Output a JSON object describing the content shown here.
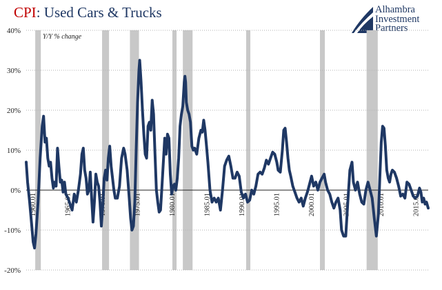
{
  "title": {
    "prefix": "CPI",
    "rest": ": Used Cars & Trucks"
  },
  "logo": {
    "lines": [
      "Alhambra",
      "Investment",
      "Partners"
    ]
  },
  "colors": {
    "line": "#1f3864",
    "recession": "#c8c8c8",
    "title_accent": "#c00000",
    "title": "#1f3864"
  },
  "chart_data": {
    "type": "line",
    "annotation": "Y/Y % change",
    "xlim": [
      1959.0,
      2016.75
    ],
    "ylim": [
      -20,
      40
    ],
    "y_ticks": [
      -20,
      -10,
      0,
      10,
      20,
      30,
      40
    ],
    "y_tick_labels": [
      "-20%",
      "-10%",
      "0%",
      "10%",
      "20%",
      "30%",
      "40%"
    ],
    "x_ticks": [
      1960,
      1965,
      1970,
      1975,
      1980,
      1985,
      1990,
      1995,
      2000,
      2005,
      2010,
      2015
    ],
    "x_tick_labels": [
      "1960.01",
      "1965.01",
      "1970.01",
      "1975.01",
      "1980.01",
      "1985.01",
      "1990.01",
      "1995.01",
      "2000.01",
      "2005.01",
      "2010.01",
      "2015.01"
    ],
    "grid": true,
    "recessions": [
      [
        1960.3,
        1961.1
      ],
      [
        1969.9,
        1970.9
      ],
      [
        1973.9,
        1975.2
      ],
      [
        1980.0,
        1980.6
      ],
      [
        1981.5,
        1982.9
      ],
      [
        1990.6,
        1991.2
      ],
      [
        2001.2,
        2001.9
      ],
      [
        2007.9,
        2009.5
      ]
    ],
    "series": [
      {
        "points": [
          [
            1959.0,
            7
          ],
          [
            1959.2,
            2
          ],
          [
            1959.5,
            -3
          ],
          [
            1959.8,
            -9
          ],
          [
            1960.0,
            -13
          ],
          [
            1960.2,
            -14.5
          ],
          [
            1960.4,
            -11
          ],
          [
            1960.7,
            -3
          ],
          [
            1961.0,
            8
          ],
          [
            1961.3,
            16
          ],
          [
            1961.5,
            18.5
          ],
          [
            1961.7,
            12
          ],
          [
            1961.9,
            13
          ],
          [
            1962.1,
            8
          ],
          [
            1962.3,
            6
          ],
          [
            1962.5,
            7
          ],
          [
            1962.7,
            3
          ],
          [
            1962.9,
            0.5
          ],
          [
            1963.1,
            2
          ],
          [
            1963.3,
            1
          ],
          [
            1963.5,
            10.5
          ],
          [
            1963.7,
            6
          ],
          [
            1963.9,
            2
          ],
          [
            1964.1,
            2.5
          ],
          [
            1964.3,
            -0.5
          ],
          [
            1964.5,
            2
          ],
          [
            1964.7,
            -1
          ],
          [
            1965.0,
            -2
          ],
          [
            1965.3,
            -3.5
          ],
          [
            1965.6,
            -5
          ],
          [
            1965.9,
            -1
          ],
          [
            1966.2,
            -3
          ],
          [
            1966.5,
            0
          ],
          [
            1966.8,
            4
          ],
          [
            1967.0,
            9
          ],
          [
            1967.2,
            10.5
          ],
          [
            1967.4,
            5
          ],
          [
            1967.6,
            3
          ],
          [
            1967.8,
            -1
          ],
          [
            1968.0,
            0
          ],
          [
            1968.2,
            4.5
          ],
          [
            1968.4,
            -2
          ],
          [
            1968.6,
            -8
          ],
          [
            1968.8,
            -3
          ],
          [
            1969.0,
            4
          ],
          [
            1969.2,
            2
          ],
          [
            1969.4,
            1
          ],
          [
            1969.6,
            -3
          ],
          [
            1969.8,
            -9
          ],
          [
            1970.0,
            -4
          ],
          [
            1970.2,
            3
          ],
          [
            1970.4,
            5
          ],
          [
            1970.6,
            2.5
          ],
          [
            1970.8,
            8
          ],
          [
            1971.0,
            11
          ],
          [
            1971.2,
            6
          ],
          [
            1971.4,
            3
          ],
          [
            1971.6,
            0
          ],
          [
            1971.8,
            -2
          ],
          [
            1972.1,
            -2
          ],
          [
            1972.4,
            1
          ],
          [
            1972.7,
            8
          ],
          [
            1973.0,
            10.5
          ],
          [
            1973.2,
            9
          ],
          [
            1973.5,
            5
          ],
          [
            1973.8,
            -2
          ],
          [
            1974.0,
            -7
          ],
          [
            1974.2,
            -10
          ],
          [
            1974.4,
            -9
          ],
          [
            1974.6,
            -3
          ],
          [
            1974.8,
            10
          ],
          [
            1975.0,
            22
          ],
          [
            1975.2,
            30
          ],
          [
            1975.3,
            32.5
          ],
          [
            1975.5,
            27
          ],
          [
            1975.7,
            20
          ],
          [
            1975.9,
            14
          ],
          [
            1976.1,
            9
          ],
          [
            1976.3,
            8
          ],
          [
            1976.5,
            16
          ],
          [
            1976.7,
            17
          ],
          [
            1976.9,
            15
          ],
          [
            1977.1,
            22.5
          ],
          [
            1977.3,
            19
          ],
          [
            1977.5,
            9
          ],
          [
            1977.7,
            0
          ],
          [
            1977.9,
            -3
          ],
          [
            1978.1,
            -5.5
          ],
          [
            1978.3,
            -5
          ],
          [
            1978.5,
            1
          ],
          [
            1978.7,
            7
          ],
          [
            1978.9,
            13
          ],
          [
            1979.1,
            9
          ],
          [
            1979.3,
            14
          ],
          [
            1979.5,
            13
          ],
          [
            1979.7,
            4
          ],
          [
            1979.9,
            -1
          ],
          [
            1980.1,
            1
          ],
          [
            1980.3,
            1.5
          ],
          [
            1980.5,
            0
          ],
          [
            1980.7,
            3
          ],
          [
            1980.9,
            8
          ],
          [
            1981.1,
            16
          ],
          [
            1981.3,
            19
          ],
          [
            1981.5,
            21
          ],
          [
            1981.7,
            27
          ],
          [
            1981.8,
            28.5
          ],
          [
            1981.9,
            27
          ],
          [
            1982.0,
            22
          ],
          [
            1982.2,
            20
          ],
          [
            1982.4,
            19
          ],
          [
            1982.6,
            17
          ],
          [
            1982.8,
            11
          ],
          [
            1983.0,
            10
          ],
          [
            1983.2,
            10.5
          ],
          [
            1983.5,
            9
          ],
          [
            1983.8,
            13
          ],
          [
            1984.1,
            15
          ],
          [
            1984.3,
            14.5
          ],
          [
            1984.5,
            17.5
          ],
          [
            1984.7,
            15
          ],
          [
            1984.9,
            11
          ],
          [
            1985.1,
            7
          ],
          [
            1985.4,
            0
          ],
          [
            1985.7,
            -3
          ],
          [
            1986.0,
            -2
          ],
          [
            1986.3,
            -3
          ],
          [
            1986.6,
            -2
          ],
          [
            1986.9,
            -5
          ],
          [
            1987.2,
            0
          ],
          [
            1987.5,
            6
          ],
          [
            1987.8,
            7.5
          ],
          [
            1988.1,
            8.5
          ],
          [
            1988.4,
            6
          ],
          [
            1988.7,
            3
          ],
          [
            1989.0,
            3
          ],
          [
            1989.3,
            4.5
          ],
          [
            1989.6,
            3.5
          ],
          [
            1989.9,
            -0.5
          ],
          [
            1990.2,
            -2
          ],
          [
            1990.5,
            -1
          ],
          [
            1990.8,
            -3
          ],
          [
            1991.1,
            -2.5
          ],
          [
            1991.4,
            0
          ],
          [
            1991.7,
            -1
          ],
          [
            1992.0,
            1
          ],
          [
            1992.3,
            4
          ],
          [
            1992.6,
            4.5
          ],
          [
            1992.9,
            4
          ],
          [
            1993.2,
            5.5
          ],
          [
            1993.5,
            7.5
          ],
          [
            1993.8,
            6.5
          ],
          [
            1994.1,
            8
          ],
          [
            1994.4,
            9.5
          ],
          [
            1994.7,
            9
          ],
          [
            1995.0,
            7
          ],
          [
            1995.2,
            5
          ],
          [
            1995.5,
            4.5
          ],
          [
            1995.8,
            10
          ],
          [
            1996.0,
            15
          ],
          [
            1996.2,
            15.5
          ],
          [
            1996.4,
            12
          ],
          [
            1996.6,
            8
          ],
          [
            1996.8,
            5
          ],
          [
            1997.0,
            3.5
          ],
          [
            1997.3,
            1
          ],
          [
            1997.6,
            -0.5
          ],
          [
            1997.9,
            -2
          ],
          [
            1998.2,
            -3
          ],
          [
            1998.5,
            -2
          ],
          [
            1998.8,
            -4
          ],
          [
            1999.1,
            -2
          ],
          [
            1999.4,
            -0.5
          ],
          [
            1999.7,
            1.5
          ],
          [
            2000.0,
            3.5
          ],
          [
            2000.3,
            1
          ],
          [
            2000.6,
            2
          ],
          [
            2000.9,
            0
          ],
          [
            2001.2,
            2
          ],
          [
            2001.5,
            3
          ],
          [
            2001.8,
            4
          ],
          [
            2002.0,
            2
          ],
          [
            2002.3,
            0
          ],
          [
            2002.6,
            -1
          ],
          [
            2002.9,
            -3
          ],
          [
            2003.2,
            -4.5
          ],
          [
            2003.5,
            -3
          ],
          [
            2003.8,
            -2
          ],
          [
            2004.1,
            -5
          ],
          [
            2004.3,
            -10
          ],
          [
            2004.6,
            -11.5
          ],
          [
            2004.9,
            -11.5
          ],
          [
            2005.2,
            -3
          ],
          [
            2005.5,
            5
          ],
          [
            2005.8,
            7
          ],
          [
            2006.0,
            2
          ],
          [
            2006.3,
            0
          ],
          [
            2006.6,
            2
          ],
          [
            2006.9,
            -1
          ],
          [
            2007.2,
            -3
          ],
          [
            2007.5,
            -3.5
          ],
          [
            2007.8,
            0
          ],
          [
            2008.1,
            2
          ],
          [
            2008.4,
            0
          ],
          [
            2008.7,
            -2
          ],
          [
            2009.0,
            -7
          ],
          [
            2009.3,
            -11.5
          ],
          [
            2009.6,
            -6
          ],
          [
            2009.8,
            3
          ],
          [
            2010.0,
            12
          ],
          [
            2010.2,
            16
          ],
          [
            2010.4,
            15.5
          ],
          [
            2010.6,
            11
          ],
          [
            2010.8,
            5
          ],
          [
            2011.0,
            3
          ],
          [
            2011.2,
            2
          ],
          [
            2011.4,
            4
          ],
          [
            2011.6,
            5
          ],
          [
            2011.9,
            4.5
          ],
          [
            2012.2,
            3
          ],
          [
            2012.5,
            1
          ],
          [
            2012.8,
            -1.5
          ],
          [
            2013.1,
            -1
          ],
          [
            2013.4,
            -2
          ],
          [
            2013.7,
            2
          ],
          [
            2014.0,
            1.5
          ],
          [
            2014.3,
            0
          ],
          [
            2014.6,
            -1.5
          ],
          [
            2014.9,
            -2
          ],
          [
            2015.2,
            -1.5
          ],
          [
            2015.5,
            0.5
          ],
          [
            2015.7,
            -0.5
          ],
          [
            2015.9,
            -3
          ],
          [
            2016.1,
            -2
          ],
          [
            2016.3,
            -3.5
          ],
          [
            2016.5,
            -3
          ],
          [
            2016.75,
            -4.5
          ]
        ]
      }
    ]
  }
}
